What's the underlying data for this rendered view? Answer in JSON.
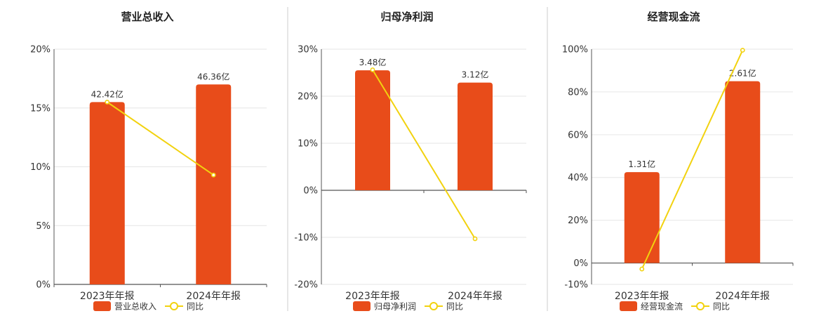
{
  "colors": {
    "bar": "#e84c1a",
    "line": "#f2d20f",
    "grid": "#e6e6e6",
    "axis": "#555555",
    "divider": "#cccccc"
  },
  "chart_data": [
    {
      "type": "bar",
      "title": "营业总收入",
      "categories": [
        "2023年年报",
        "2024年年报"
      ],
      "ylim": [
        0,
        20
      ],
      "yticks": [
        "0%",
        "5%",
        "10%",
        "15%",
        "20%"
      ],
      "ytick_values": [
        0,
        5,
        10,
        15,
        20
      ],
      "series": [
        {
          "name": "营业总收入",
          "type": "bar",
          "values": [
            15.5,
            17.0
          ],
          "labels": [
            "42.42亿",
            "46.36亿"
          ]
        },
        {
          "name": "同比",
          "type": "line",
          "values": [
            15.5,
            9.3
          ]
        }
      ],
      "legend": "bottom",
      "grid": true
    },
    {
      "type": "bar",
      "title": "归母净利润",
      "categories": [
        "2023年年报",
        "2024年年报"
      ],
      "ylim": [
        -20,
        30
      ],
      "yticks": [
        "-20%",
        "-10%",
        "0%",
        "10%",
        "20%",
        "30%"
      ],
      "ytick_values": [
        -20,
        -10,
        0,
        10,
        20,
        30
      ],
      "series": [
        {
          "name": "归母净利润",
          "type": "bar",
          "values": [
            25.5,
            22.9
          ],
          "labels": [
            "3.48亿",
            "3.12亿"
          ]
        },
        {
          "name": "同比",
          "type": "line",
          "values": [
            25.6,
            -10.3
          ]
        }
      ],
      "legend": "bottom",
      "grid": true
    },
    {
      "type": "bar",
      "title": "经营现金流",
      "categories": [
        "2023年年报",
        "2024年年报"
      ],
      "ylim": [
        -10,
        100
      ],
      "yticks": [
        "-10%",
        "0%",
        "20%",
        "40%",
        "60%",
        "80%",
        "100%"
      ],
      "ytick_values": [
        -10,
        0,
        20,
        40,
        60,
        80,
        100
      ],
      "series": [
        {
          "name": "经营现金流",
          "type": "bar",
          "values": [
            42.5,
            85.0
          ],
          "labels": [
            "1.31亿",
            "2.61亿"
          ]
        },
        {
          "name": "同比",
          "type": "line",
          "values": [
            -2.8,
            99.5
          ]
        }
      ],
      "legend": "bottom",
      "grid": true
    }
  ]
}
